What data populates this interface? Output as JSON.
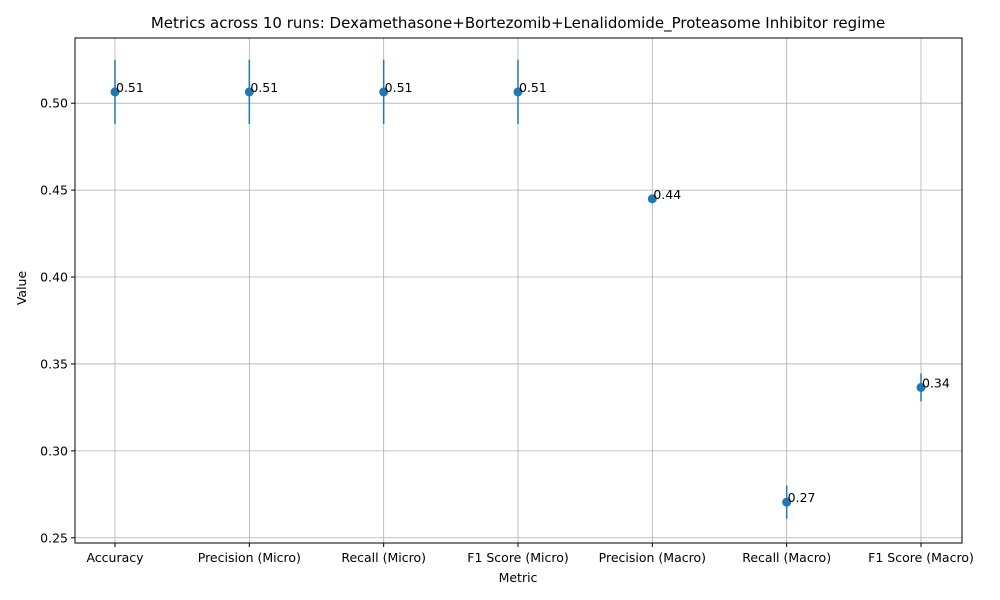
{
  "chart_data": {
    "type": "scatter",
    "title": "Metrics across 10 runs: Dexamethasone+Bortezomib+Lenalidomide_Proteasome Inhibitor regime",
    "xlabel": "Metric",
    "ylabel": "Value",
    "categories": [
      "Accuracy",
      "Precision (Micro)",
      "Recall (Micro)",
      "F1 Score (Micro)",
      "Precision (Macro)",
      "Recall (Macro)",
      "F1 Score (Macro)"
    ],
    "values": [
      0.5065,
      0.5065,
      0.5065,
      0.5065,
      0.445,
      0.2705,
      0.3365
    ],
    "errors": [
      0.0185,
      0.0185,
      0.0185,
      0.0185,
      0.0,
      0.0095,
      0.008
    ],
    "data_labels": [
      "0.51",
      "0.51",
      "0.51",
      "0.51",
      "0.44",
      "0.27",
      "0.34"
    ],
    "ylim": [
      0.247,
      0.5375
    ],
    "yticks": [
      0.25,
      0.3,
      0.35,
      0.4,
      0.45,
      0.5
    ],
    "ytick_labels": [
      "0.25",
      "0.30",
      "0.35",
      "0.40",
      "0.45",
      "0.50"
    ],
    "grid": true,
    "color": "#1f77b4"
  }
}
